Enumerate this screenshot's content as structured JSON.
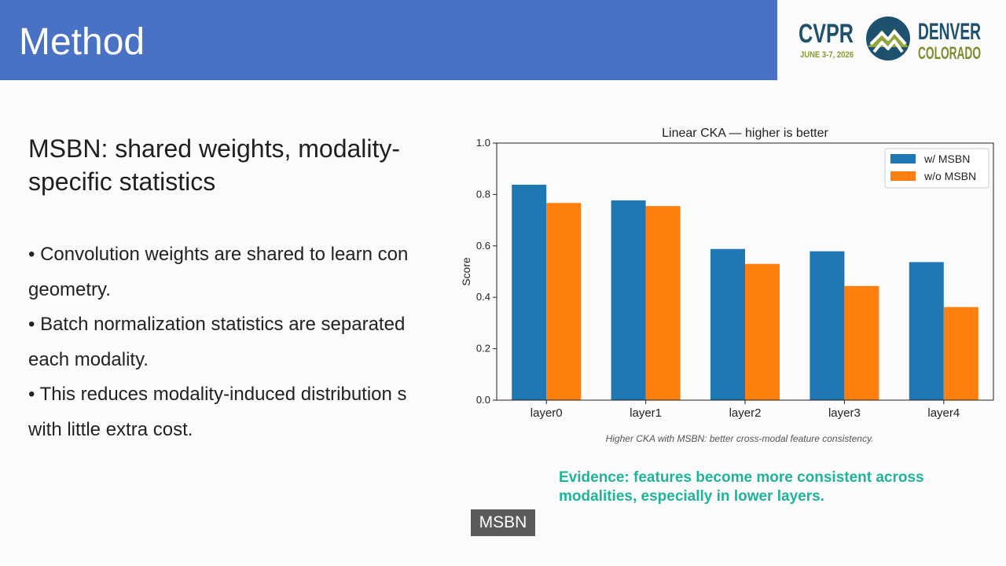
{
  "header": {
    "title": "Method"
  },
  "logo": {
    "brand": "CVPR",
    "dates": "JUNE 3-7, 2026",
    "city": "DENVER",
    "state": "COLORADO",
    "colors": {
      "brand": "#1e5070",
      "city": "#7a8f2c",
      "dates": "#8a9a2c"
    }
  },
  "main": {
    "heading": "MSBN: shared weights, modality-specific statistics",
    "bullets": [
      "• Convolution weights are shared to learn con",
      "geometry.",
      "• Batch normalization statistics are separated",
      "each modality.",
      "• This reduces modality-induced distribution s",
      "with little extra cost."
    ],
    "evidence": "Evidence: features become more consistent across modalities, especially in lower layers."
  },
  "caption": {
    "text": "MSBN"
  },
  "chart_data": {
    "type": "bar",
    "title": "Linear CKA  — higher is better",
    "xlabel": "",
    "ylabel": "Score",
    "categories": [
      "layer0",
      "layer1",
      "layer2",
      "layer3",
      "layer4"
    ],
    "series": [
      {
        "name": "w/ MSBN",
        "values": [
          0.838,
          0.777,
          0.588,
          0.579,
          0.537
        ],
        "color": "#1f77b4"
      },
      {
        "name": "w/o MSBN",
        "values": [
          0.767,
          0.755,
          0.53,
          0.444,
          0.362
        ],
        "color": "#ff7f0e"
      }
    ],
    "ylim": [
      0,
      1.0
    ],
    "yticks": [
      "0.0",
      "0.2",
      "0.4",
      "0.6",
      "0.8",
      "1.0"
    ],
    "grid": false,
    "legend": "top-right",
    "note": "Higher CKA with MSBN: better cross-modal feature consistency."
  }
}
